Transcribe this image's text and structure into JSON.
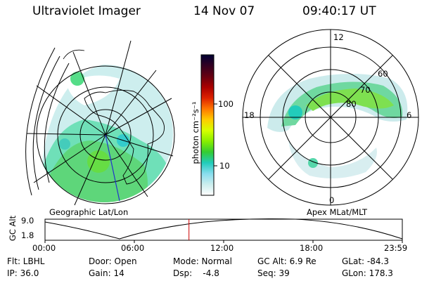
{
  "header": {
    "title": "Ultraviolet Imager",
    "date": "14 Nov 07",
    "time": "09:40:17 UT"
  },
  "colorbar": {
    "unit": "photon cm⁻²s⁻¹",
    "ticks": [
      "100",
      "10"
    ],
    "colors": [
      "#000033",
      "#330022",
      "#660011",
      "#aa0000",
      "#dd2200",
      "#ff7700",
      "#ffcc00",
      "#d6ff00",
      "#88ee00",
      "#33cc33",
      "#22ccbb",
      "#88ddee",
      "#cceeee",
      "#ffffff"
    ]
  },
  "geo_map": {
    "label": "Geographic Lat/Lon"
  },
  "mag_map": {
    "label": "Apex MLat/MLT",
    "mlt_labels": {
      "top": "12",
      "left": "18",
      "right": "6",
      "bottom": "0"
    },
    "lat_labels": [
      "60",
      "70",
      "80"
    ]
  },
  "timeline": {
    "ylabel": "GC Alt",
    "yticks": [
      "9.0",
      "1.8"
    ],
    "xticks": [
      "00:00",
      "06:00",
      "12:00",
      "18:00",
      "23:59"
    ],
    "current_marker_time": 9.67,
    "marker_color": "#cc0000"
  },
  "info": {
    "row1": {
      "filter": "Flt: LBHL",
      "door": "Door: Open",
      "mode": "Mode: Normal",
      "gc_alt": "GC Alt: 6.9 Re",
      "glat": "GLat: -84.3"
    },
    "row2": {
      "ip": "IP: 36.0",
      "gain": "Gain: 14",
      "dsp": "Dsp:    -4.8",
      "seq": "Seq: 39",
      "glon": "GLon: 178.3"
    }
  }
}
